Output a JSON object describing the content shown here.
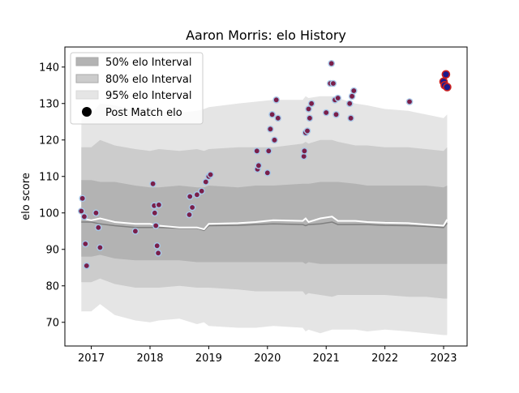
{
  "chart_data": {
    "type": "line",
    "title": "Aaron Morris: elo History",
    "xlabel": "",
    "ylabel": "elo score",
    "xlim": [
      2016.55,
      2023.4
    ],
    "ylim": [
      63.5,
      145.5
    ],
    "x_ticks": [
      2017,
      2018,
      2019,
      2020,
      2021,
      2022,
      2023
    ],
    "x_tick_labels": [
      "2017",
      "2018",
      "2019",
      "2020",
      "2021",
      "2022",
      "2023"
    ],
    "y_ticks": [
      70,
      80,
      90,
      100,
      110,
      120,
      130,
      140
    ],
    "y_tick_labels": [
      "70",
      "80",
      "90",
      "100",
      "110",
      "120",
      "130",
      "140"
    ],
    "grid": false,
    "legend_position": "top-left",
    "legend": [
      {
        "label": "50% elo Interval",
        "kind": "band",
        "color": "#b3b3b3"
      },
      {
        "label": "80% elo Interval",
        "kind": "band",
        "color": "#cccccc"
      },
      {
        "label": "95% elo Interval",
        "kind": "band",
        "color": "#e5e5e5"
      },
      {
        "label": "Post Match elo",
        "kind": "marker",
        "color": "#000000"
      }
    ],
    "colors": {
      "band50": "#b3b3b3",
      "band80": "#cccccc",
      "band95": "#e5e5e5",
      "mean_line": "#7f7f7f",
      "median_line": "#ffffff",
      "point_fill": "#7a1f4a",
      "point_edge": "#a8c8e8",
      "last_point_fill": "#1a1a8c",
      "last_point_edge": "#cc2020"
    },
    "band_x": [
      2016.83,
      2017.0,
      2017.15,
      2017.4,
      2017.75,
      2018.0,
      2018.15,
      2018.5,
      2018.8,
      2018.92,
      2019.0,
      2019.5,
      2019.8,
      2020.1,
      2020.6,
      2020.65,
      2020.7,
      2020.9,
      2021.1,
      2021.2,
      2021.5,
      2021.7,
      2022.0,
      2022.4,
      2022.7,
      2023.0,
      2023.06
    ],
    "band95_upper": [
      126,
      127,
      130,
      129.5,
      128,
      129,
      128,
      127.5,
      128,
      128.5,
      129,
      130,
      130.5,
      131,
      131,
      132,
      131.5,
      132,
      132,
      131.5,
      130,
      129.5,
      128.5,
      128,
      127,
      126,
      127
    ],
    "band95_lower": [
      73,
      73,
      75,
      72,
      70.5,
      70,
      70.5,
      71,
      69.5,
      70,
      69,
      68.5,
      68.5,
      69,
      68.5,
      67.5,
      68,
      67,
      68,
      68,
      68,
      67.5,
      68,
      67.5,
      67,
      66.5,
      66.5
    ],
    "band80_upper": [
      118,
      118,
      120,
      118.5,
      117.5,
      117,
      117.5,
      117,
      117.5,
      117,
      117.5,
      118,
      118,
      118,
      119,
      119.5,
      119,
      120,
      120,
      119.5,
      118.5,
      118.5,
      118,
      118,
      117.5,
      117,
      118
    ],
    "band80_lower": [
      81,
      81,
      82,
      80.5,
      79.5,
      79.5,
      79.5,
      80,
      79.5,
      79.5,
      79.5,
      79,
      78.5,
      78.5,
      78.5,
      77.5,
      78,
      77.5,
      77,
      77.5,
      77.5,
      77.5,
      77.5,
      77,
      77,
      76.5,
      76.5
    ],
    "band50_upper": [
      109,
      109,
      108.5,
      108.5,
      107.5,
      107,
      107,
      107.5,
      107,
      107,
      107.5,
      107,
      107.5,
      107.5,
      108,
      108,
      108,
      108.5,
      108.5,
      108.5,
      108,
      107.5,
      107.5,
      107.5,
      107.5,
      107,
      107.5
    ],
    "band50_lower": [
      88,
      88,
      88.5,
      87.5,
      87,
      87,
      87,
      87,
      86.5,
      86.5,
      86.5,
      86.5,
      86.5,
      86.5,
      86.5,
      86,
      86.5,
      86,
      86,
      86,
      86,
      86,
      86,
      86,
      86,
      86,
      86
    ],
    "mean_line": [
      97.5,
      97.5,
      97,
      96.5,
      96,
      96,
      96,
      95.8,
      95.8,
      95.2,
      96.5,
      96.6,
      96.8,
      97,
      96.8,
      96.5,
      96.8,
      97,
      97.5,
      96.8,
      96.8,
      96.8,
      96.6,
      96.5,
      96.3,
      96,
      97.2
    ],
    "median_line": [
      98.5,
      98,
      98.5,
      97.5,
      97,
      97,
      96.5,
      96,
      96,
      95.5,
      97,
      97.2,
      97.5,
      98,
      97.8,
      98.5,
      97.5,
      98.5,
      99,
      97.8,
      97.8,
      97.5,
      97.3,
      97.2,
      96.8,
      96.5,
      98.2
    ],
    "points": {
      "x": [
        2016.83,
        2016.85,
        2016.88,
        2016.9,
        2016.92,
        2017.08,
        2017.12,
        2017.15,
        2017.75,
        2018.05,
        2018.07,
        2018.08,
        2018.1,
        2018.12,
        2018.14,
        2018.15,
        2018.67,
        2018.68,
        2018.72,
        2018.8,
        2018.88,
        2018.95,
        2019.0,
        2019.03,
        2019.82,
        2019.83,
        2019.85,
        2020.0,
        2020.02,
        2020.05,
        2020.08,
        2020.12,
        2020.15,
        2020.18,
        2020.62,
        2020.63,
        2020.65,
        2020.68,
        2020.7,
        2020.72,
        2020.75,
        2021.0,
        2021.07,
        2021.09,
        2021.12,
        2021.15,
        2021.17,
        2021.2,
        2021.4,
        2021.42,
        2021.44,
        2021.47,
        2022.42,
        2023.0,
        2023.02,
        2023.04,
        2023.06
      ],
      "y": [
        100.5,
        104,
        99,
        91.5,
        85.5,
        100,
        96,
        90.5,
        95,
        108,
        102,
        100,
        96.5,
        91,
        89,
        102.2,
        99.5,
        104.5,
        101.5,
        105,
        106,
        108.5,
        110,
        110.5,
        117,
        112,
        113,
        111,
        117,
        123,
        127,
        120,
        131,
        126,
        115.5,
        117,
        122,
        122.5,
        128.5,
        126,
        130,
        127.5,
        135.5,
        141,
        135.5,
        131,
        127,
        131.5,
        130,
        126,
        132,
        133.5,
        130.5,
        136,
        135,
        138,
        134.5
      ]
    }
  }
}
